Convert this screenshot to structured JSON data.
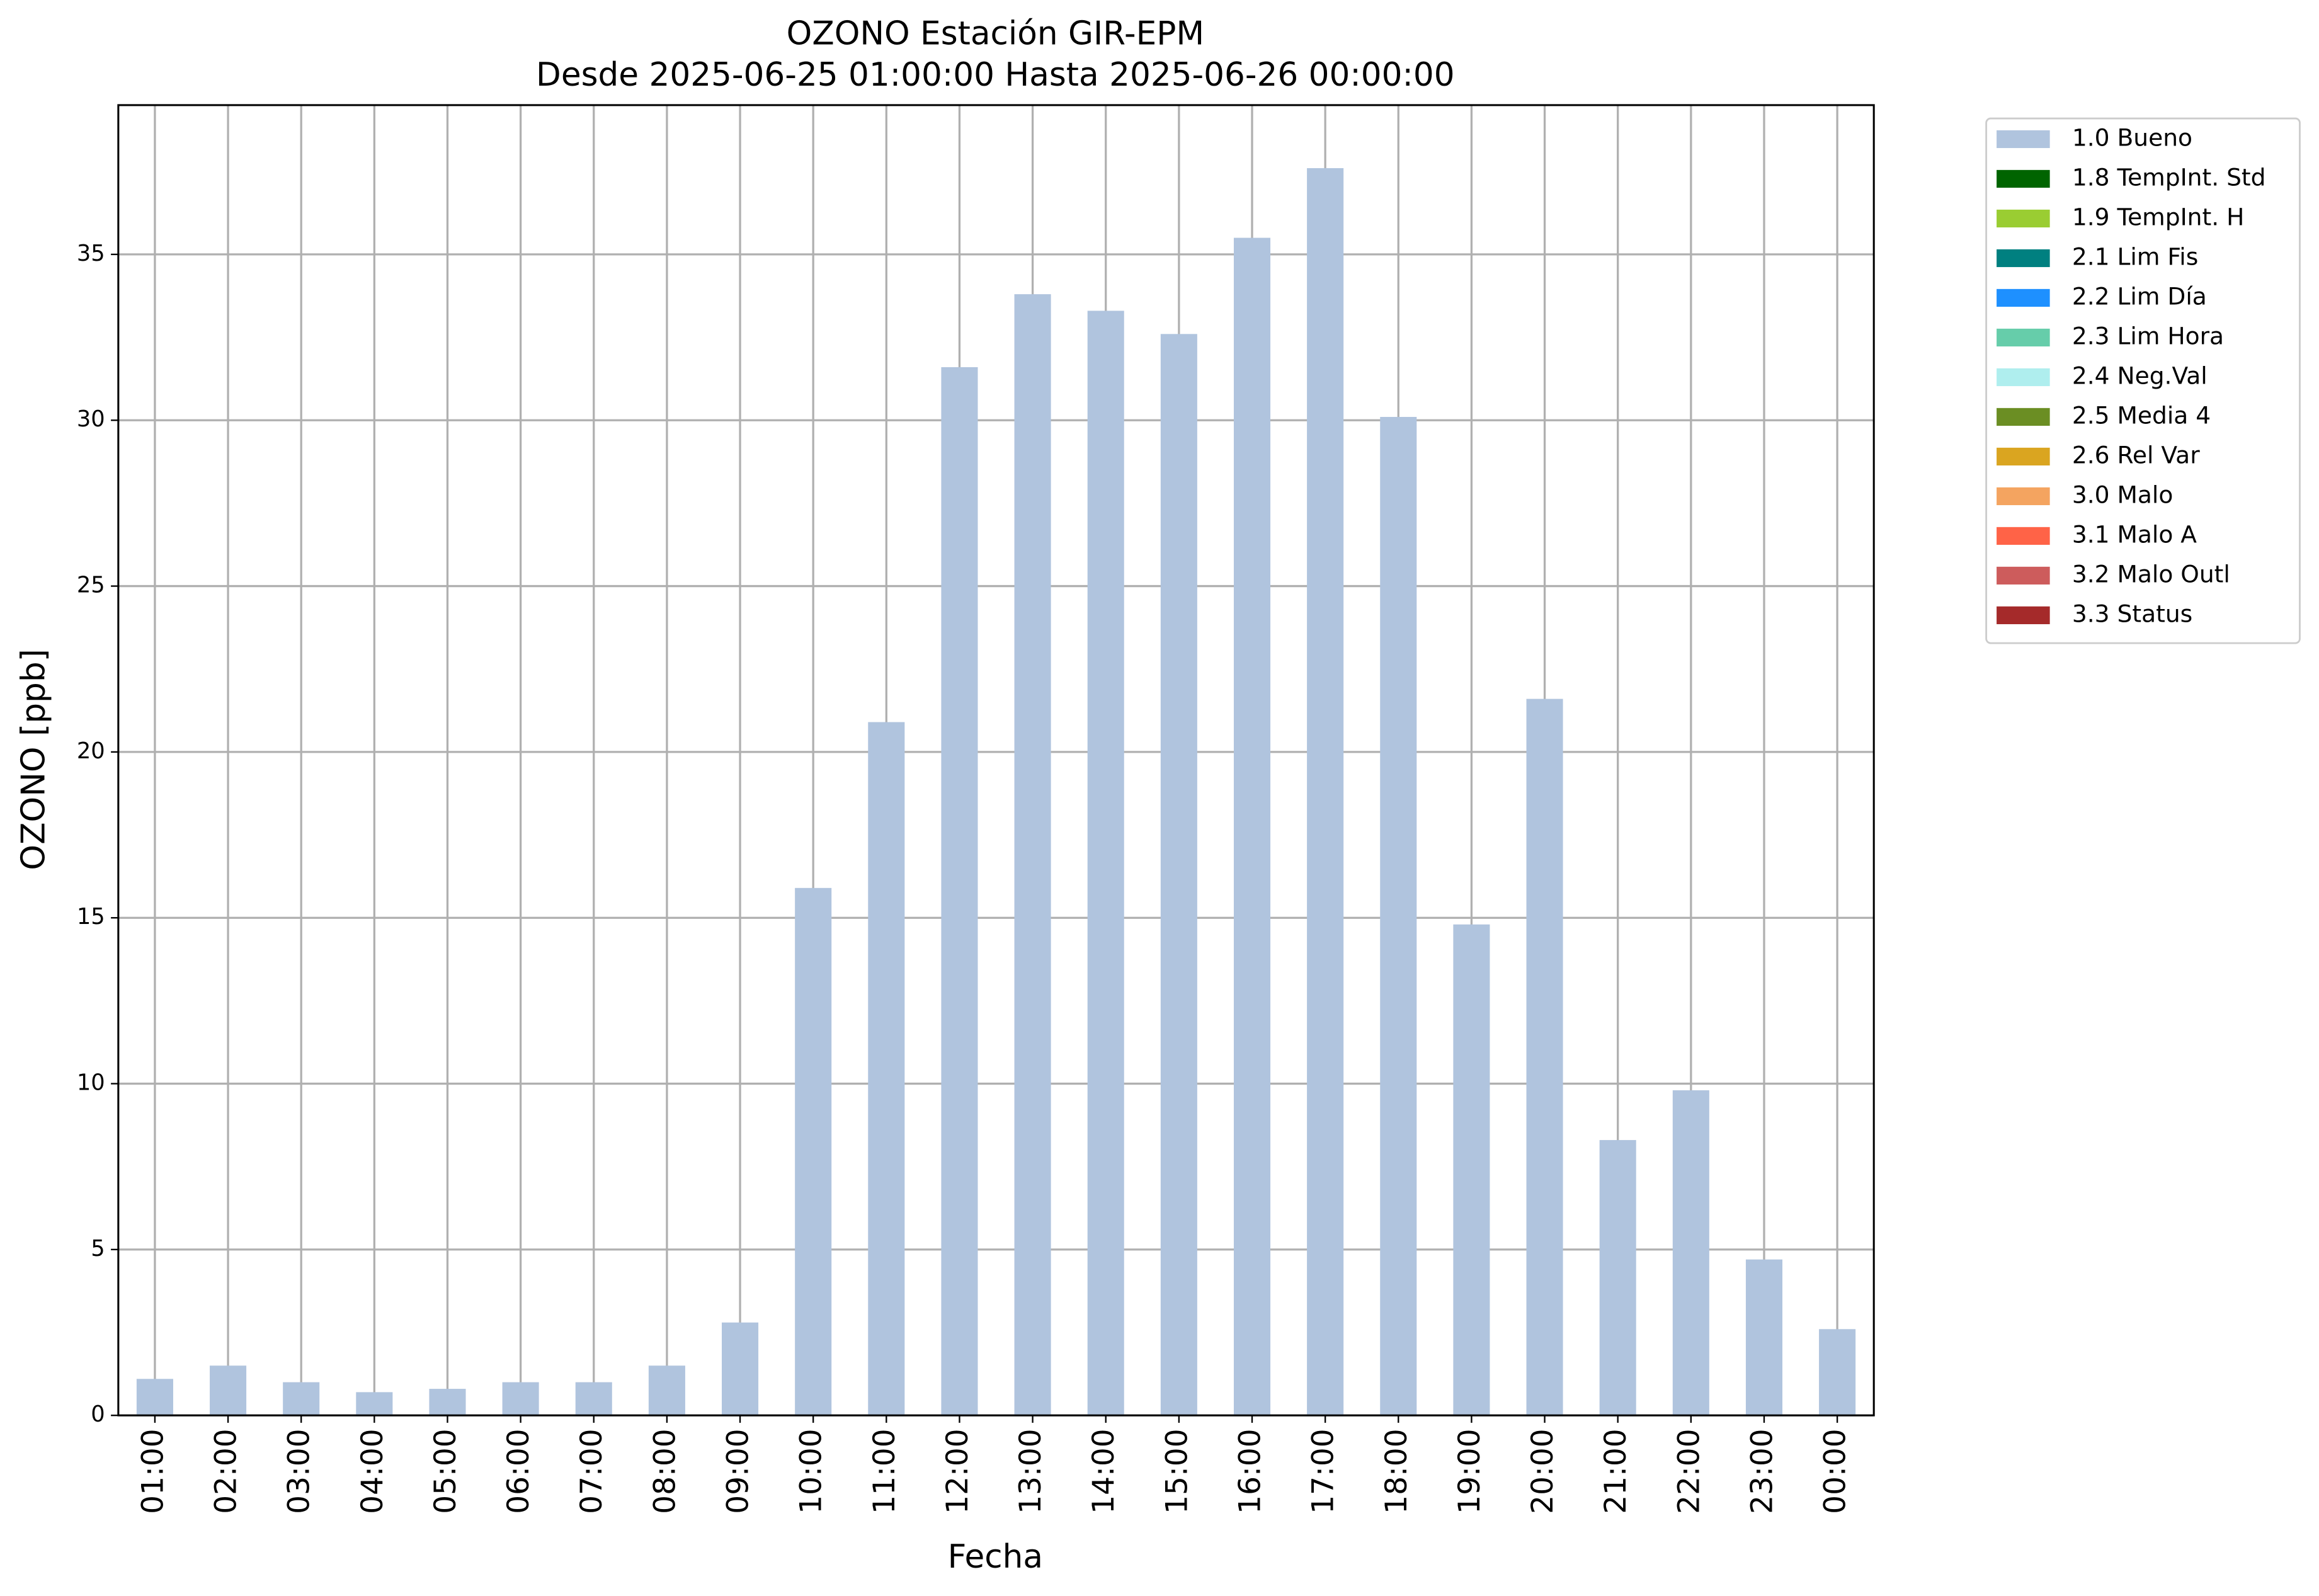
{
  "chart_data": {
    "type": "bar",
    "stacked": true,
    "title": "OZONO Estación GIR-EPM",
    "subtitle": "Desde 2025-06-25 01:00:00 Hasta 2025-06-26 00:00:00",
    "x_label": "Fecha",
    "y_label": "OZONO [ppb]",
    "categories": [
      "01:00",
      "02:00",
      "03:00",
      "04:00",
      "05:00",
      "06:00",
      "07:00",
      "08:00",
      "09:00",
      "10:00",
      "11:00",
      "12:00",
      "13:00",
      "14:00",
      "15:00",
      "16:00",
      "17:00",
      "18:00",
      "19:00",
      "20:00",
      "21:00",
      "22:00",
      "23:00",
      "00:00"
    ],
    "series": [
      {
        "name": "1.0 Bueno",
        "color": "#b0c4de",
        "values": [
          1.1,
          1.5,
          1.0,
          0.7,
          0.8,
          1.0,
          1.0,
          1.5,
          2.8,
          15.9,
          20.9,
          31.6,
          33.8,
          33.3,
          32.6,
          35.5,
          37.6,
          30.1,
          14.8,
          21.6,
          8.3,
          9.8,
          4.7,
          2.6
        ]
      },
      {
        "name": "1.8 TempInt. Std",
        "color": "#006400",
        "values": [
          null,
          null,
          null,
          null,
          null,
          null,
          null,
          null,
          null,
          null,
          null,
          null,
          null,
          null,
          null,
          null,
          null,
          null,
          null,
          null,
          null,
          null,
          null,
          null
        ]
      },
      {
        "name": "1.9 TempInt. H",
        "color": "#9acd32",
        "values": [
          null,
          null,
          null,
          null,
          null,
          null,
          null,
          null,
          null,
          null,
          null,
          null,
          null,
          null,
          null,
          null,
          null,
          null,
          null,
          null,
          null,
          null,
          null,
          null
        ]
      },
      {
        "name": "2.1 Lim Fis",
        "color": "#008080",
        "values": [
          null,
          null,
          null,
          null,
          null,
          null,
          null,
          null,
          null,
          null,
          null,
          null,
          null,
          null,
          null,
          null,
          null,
          null,
          null,
          null,
          null,
          null,
          null,
          null
        ]
      },
      {
        "name": "2.2 Lim Día",
        "color": "#1e90ff",
        "values": [
          null,
          null,
          null,
          null,
          null,
          null,
          null,
          null,
          null,
          null,
          null,
          null,
          null,
          null,
          null,
          null,
          null,
          null,
          null,
          null,
          null,
          null,
          null,
          null
        ]
      },
      {
        "name": "2.3 Lim Hora",
        "color": "#66cdaa",
        "values": [
          null,
          null,
          null,
          null,
          null,
          null,
          null,
          null,
          null,
          null,
          null,
          null,
          null,
          null,
          null,
          null,
          null,
          null,
          null,
          null,
          null,
          null,
          null,
          null
        ]
      },
      {
        "name": "2.4 Neg.Val",
        "color": "#afeeee",
        "values": [
          null,
          null,
          null,
          null,
          null,
          null,
          null,
          null,
          null,
          null,
          null,
          null,
          null,
          null,
          null,
          null,
          null,
          null,
          null,
          null,
          null,
          null,
          null,
          null
        ]
      },
      {
        "name": "2.5 Media 4",
        "color": "#6b8e23",
        "values": [
          null,
          null,
          null,
          null,
          null,
          null,
          null,
          null,
          null,
          null,
          null,
          null,
          null,
          null,
          null,
          null,
          null,
          null,
          null,
          null,
          null,
          null,
          null,
          null
        ]
      },
      {
        "name": "2.6 Rel Var",
        "color": "#daa520",
        "values": [
          null,
          null,
          null,
          null,
          null,
          null,
          null,
          null,
          null,
          null,
          null,
          null,
          null,
          null,
          null,
          null,
          null,
          null,
          null,
          null,
          null,
          null,
          null,
          null
        ]
      },
      {
        "name": "3.0 Malo",
        "color": "#f4a460",
        "values": [
          null,
          null,
          null,
          null,
          null,
          null,
          null,
          null,
          null,
          null,
          null,
          null,
          null,
          null,
          null,
          null,
          null,
          null,
          null,
          null,
          null,
          null,
          null,
          null
        ]
      },
      {
        "name": "3.1 Malo A",
        "color": "#ff6347",
        "values": [
          null,
          null,
          null,
          null,
          null,
          null,
          null,
          null,
          null,
          null,
          null,
          null,
          null,
          null,
          null,
          null,
          null,
          null,
          null,
          null,
          null,
          null,
          null,
          null
        ]
      },
      {
        "name": "3.2 Malo Outl",
        "color": "#cd5c5c",
        "values": [
          null,
          null,
          null,
          null,
          null,
          null,
          null,
          null,
          null,
          null,
          null,
          null,
          null,
          null,
          null,
          null,
          null,
          null,
          null,
          null,
          null,
          null,
          null,
          null
        ]
      },
      {
        "name": "3.3 Status",
        "color": "#a52a2a",
        "values": [
          null,
          null,
          null,
          null,
          null,
          null,
          null,
          null,
          null,
          null,
          null,
          null,
          null,
          null,
          null,
          null,
          null,
          null,
          null,
          null,
          null,
          null,
          null,
          null
        ]
      }
    ],
    "ylim": [
      0,
      39.5
    ],
    "yticks": [
      0,
      5,
      10,
      15,
      20,
      25,
      30,
      35
    ],
    "grid": true,
    "legend": "outside-upper-right"
  }
}
